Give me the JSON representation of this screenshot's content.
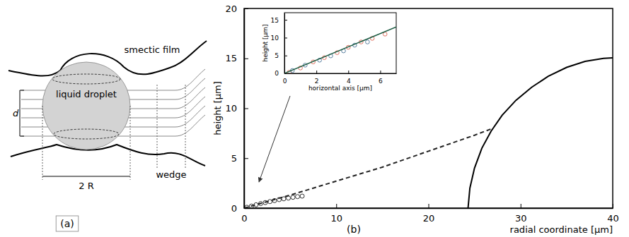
{
  "panel_a": {
    "label": "(a)",
    "film": "smectic film",
    "droplet": "liquid droplet",
    "thickness": "d",
    "diameter": "2 R",
    "wedge": "wedge"
  },
  "panel_b": {
    "label": "(b)"
  },
  "chart_data": [
    {
      "type": "line",
      "xlabel": "radial coordinate [µm]",
      "ylabel": "height [µm]",
      "xlim": [
        0,
        40
      ],
      "ylim": [
        0,
        20
      ],
      "xticks": [
        0,
        10,
        20,
        30,
        40
      ],
      "yticks": [
        0,
        5,
        10,
        15,
        20
      ],
      "series": [
        {
          "type": "scatter",
          "marker": "circle",
          "color": "#333333",
          "x": [
            0.3,
            0.8,
            1.3,
            1.8,
            2.3,
            2.8,
            3.3,
            3.8,
            4.3,
            4.8,
            5.3,
            5.8,
            6.3
          ],
          "values": [
            0.08,
            0.2,
            0.33,
            0.45,
            0.55,
            0.65,
            0.75,
            0.85,
            0.93,
            1.0,
            1.08,
            1.15,
            1.2
          ]
        },
        {
          "type": "line",
          "line_style": "dashed",
          "color": "#222222",
          "x": [
            0,
            5,
            10,
            15,
            20,
            25,
            27
          ],
          "values": [
            0,
            1.3,
            2.7,
            4.1,
            5.7,
            7.3,
            8.0
          ]
        },
        {
          "type": "line",
          "line_style": "solid",
          "color": "#000000",
          "x": [
            24.3,
            24.5,
            25.0,
            25.8,
            26.8,
            28.0,
            29.5,
            31.2,
            33.0,
            35.0,
            37.0,
            39.0,
            40.0
          ],
          "values": [
            0,
            2.0,
            4.0,
            6.0,
            7.7,
            9.3,
            10.8,
            12.1,
            13.2,
            14.1,
            14.7,
            15.0,
            15.05
          ]
        }
      ]
    },
    {
      "type": "scatter",
      "xlabel": "horizontal axis [µm]",
      "ylabel": "height [µm]",
      "xlim": [
        0,
        7
      ],
      "ylim": [
        0,
        17
      ],
      "xticks": [
        0,
        2,
        4,
        6
      ],
      "yticks": [
        0,
        5,
        10,
        15
      ],
      "series": [
        {
          "type": "scatter",
          "marker": "circle",
          "color": "#e07060",
          "x": [
            0.3,
            1.0,
            1.8,
            2.5,
            3.3,
            4.0,
            4.8,
            5.5,
            6.3
          ],
          "values": [
            0.3,
            1.5,
            3.2,
            4.4,
            5.8,
            7.3,
            8.8,
            9.8,
            11.0
          ]
        },
        {
          "type": "scatter",
          "marker": "circle",
          "color": "#5a7fa0",
          "x": [
            0.5,
            1.3,
            2.2,
            2.9,
            3.7,
            4.4,
            5.2
          ],
          "values": [
            0.8,
            2.3,
            3.7,
            4.9,
            6.3,
            7.9,
            8.8
          ]
        },
        {
          "type": "line",
          "line_style": "solid",
          "color": "#1a5a40",
          "x": [
            0,
            7
          ],
          "values": [
            0,
            13
          ]
        }
      ]
    }
  ]
}
